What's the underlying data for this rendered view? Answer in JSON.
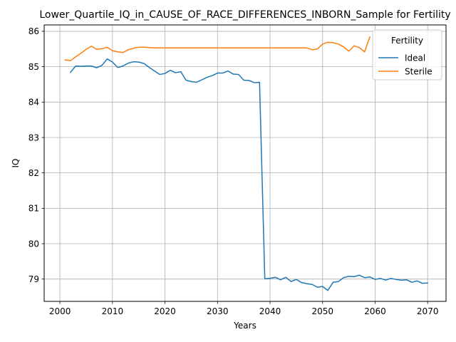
{
  "chart_data": {
    "type": "line",
    "title": "Lower_Quartile_IQ_in_CAUSE_OF_RACE_DIFFERENCES_INBORN_Sample for Fertility",
    "xlabel": "Years",
    "ylabel": "IQ",
    "xlim": [
      1997,
      2073.5
    ],
    "ylim": [
      78.37,
      86.18
    ],
    "xticks": [
      2000,
      2010,
      2020,
      2030,
      2040,
      2050,
      2060,
      2070
    ],
    "yticks": [
      79,
      80,
      81,
      82,
      83,
      84,
      85,
      86
    ],
    "grid": true,
    "legend": {
      "title": "Fertility",
      "placement": "top-right"
    },
    "series": [
      {
        "name": "Ideal",
        "color": "#1f77b4",
        "x": [
          2002,
          2003,
          2004,
          2005,
          2006,
          2007,
          2008,
          2009,
          2010,
          2011,
          2012,
          2013,
          2014,
          2015,
          2016,
          2017,
          2018,
          2019,
          2020,
          2021,
          2022,
          2023,
          2024,
          2025,
          2026,
          2027,
          2028,
          2029,
          2030,
          2031,
          2032,
          2033,
          2034,
          2035,
          2036,
          2037,
          2038,
          2039,
          2040,
          2041,
          2042,
          2043,
          2044,
          2045,
          2046,
          2047,
          2048,
          2049,
          2050,
          2051,
          2052,
          2053,
          2054,
          2055,
          2056,
          2057,
          2058,
          2059,
          2060,
          2061,
          2062,
          2063,
          2064,
          2065,
          2066,
          2067,
          2068,
          2069,
          2070
        ],
        "values": [
          84.84,
          85.02,
          85.01,
          85.02,
          85.02,
          84.97,
          85.04,
          85.22,
          85.13,
          84.98,
          85.02,
          85.1,
          85.14,
          85.13,
          85.09,
          84.98,
          84.88,
          84.78,
          84.81,
          84.9,
          84.83,
          84.86,
          84.62,
          84.58,
          84.56,
          84.63,
          84.7,
          84.75,
          84.82,
          84.82,
          84.88,
          84.79,
          84.78,
          84.62,
          84.61,
          84.55,
          84.56,
          79.01,
          79.02,
          79.05,
          78.98,
          79.05,
          78.93,
          78.99,
          78.9,
          78.87,
          78.85,
          78.77,
          78.79,
          78.68,
          78.91,
          78.93,
          79.04,
          79.08,
          79.07,
          79.11,
          79.04,
          79.06,
          78.99,
          79.02,
          78.97,
          79.02,
          78.99,
          78.97,
          78.98,
          78.91,
          78.95,
          78.88,
          78.89
        ]
      },
      {
        "name": "Sterile",
        "color": "#ff7f0e",
        "x": [
          2001,
          2002,
          2003,
          2004,
          2005,
          2006,
          2007,
          2008,
          2009,
          2010,
          2011,
          2012,
          2013,
          2014,
          2015,
          2016,
          2017,
          2018,
          2019,
          2020,
          2021,
          2022,
          2023,
          2024,
          2025,
          2026,
          2027,
          2028,
          2029,
          2030,
          2031,
          2032,
          2033,
          2034,
          2035,
          2036,
          2037,
          2038,
          2039,
          2040,
          2041,
          2042,
          2043,
          2044,
          2045,
          2046,
          2047,
          2048,
          2049,
          2050,
          2051,
          2052,
          2053,
          2054,
          2055,
          2056,
          2057,
          2058,
          2059
        ],
        "values": [
          85.19,
          85.17,
          85.28,
          85.38,
          85.49,
          85.58,
          85.49,
          85.51,
          85.55,
          85.45,
          85.42,
          85.4,
          85.48,
          85.52,
          85.55,
          85.55,
          85.54,
          85.53,
          85.53,
          85.53,
          85.53,
          85.53,
          85.53,
          85.53,
          85.53,
          85.53,
          85.53,
          85.53,
          85.53,
          85.53,
          85.53,
          85.53,
          85.53,
          85.53,
          85.53,
          85.53,
          85.53,
          85.53,
          85.53,
          85.53,
          85.53,
          85.53,
          85.53,
          85.53,
          85.53,
          85.53,
          85.53,
          85.48,
          85.5,
          85.64,
          85.69,
          85.68,
          85.64,
          85.56,
          85.44,
          85.59,
          85.54,
          85.42,
          85.84
        ]
      }
    ]
  }
}
